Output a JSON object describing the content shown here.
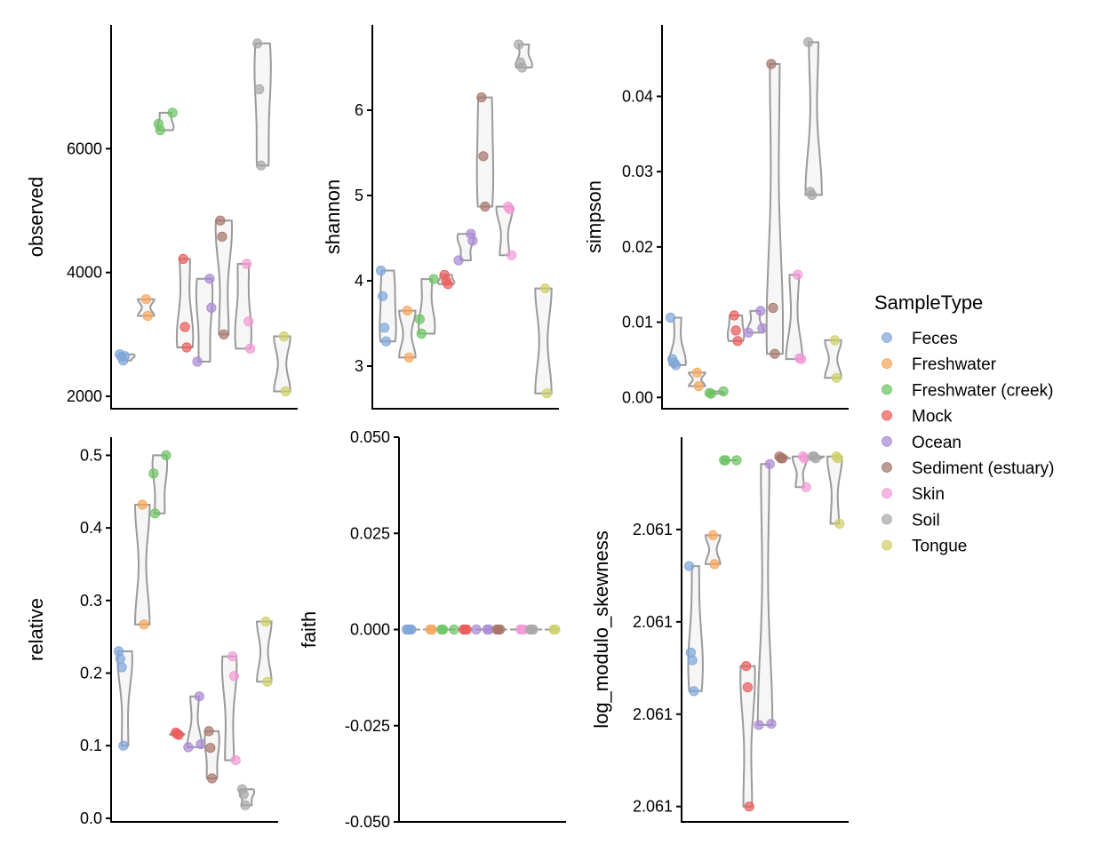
{
  "colors": {
    "Feces": "#7fa6d9",
    "Freshwater": "#f7a65b",
    "Freshwater (creek)": "#6cc463",
    "Mock": "#ec5b5b",
    "Ocean": "#a98bd6",
    "Sediment (estuary)": "#a6766a",
    "Skin": "#f39ad6",
    "Soil": "#a8a8a8",
    "Tongue": "#cfd06a"
  },
  "legend": {
    "title": "SampleType",
    "items": [
      "Feces",
      "Freshwater",
      "Freshwater (creek)",
      "Mock",
      "Ocean",
      "Sediment (estuary)",
      "Skin",
      "Soil",
      "Tongue"
    ]
  },
  "chart_data": [
    {
      "type": "violin",
      "ylabel": "observed",
      "ylim": [
        1800,
        8000
      ],
      "yticks": [
        2000,
        4000,
        6000
      ],
      "tick_labels": [
        "2000",
        "4000",
        "6000"
      ],
      "groups": {
        "Feces": [
          2680,
          2640,
          2580,
          2650
        ],
        "Freshwater": [
          3570,
          3300
        ],
        "Freshwater (creek)": [
          6580,
          6400,
          6300
        ],
        "Mock": [
          4220,
          3120,
          2790
        ],
        "Ocean": [
          3900,
          3430,
          2560
        ],
        "Sediment (estuary)": [
          4840,
          4580,
          3000
        ],
        "Skin": [
          4140,
          3210,
          2770
        ],
        "Soil": [
          7700,
          6960,
          5730
        ],
        "Tongue": [
          2970,
          2080
        ]
      }
    },
    {
      "type": "violin",
      "ylabel": "shannon",
      "ylim": [
        2.5,
        7.0
      ],
      "yticks": [
        3,
        4,
        5,
        6
      ],
      "tick_labels": [
        "3",
        "4",
        "5",
        "6"
      ],
      "groups": {
        "Feces": [
          4.12,
          3.82,
          3.45,
          3.29
        ],
        "Freshwater": [
          3.65,
          3.1
        ],
        "Freshwater (creek)": [
          4.02,
          3.55,
          3.38
        ],
        "Mock": [
          4.07,
          4.0,
          3.96
        ],
        "Ocean": [
          4.55,
          4.47,
          4.24
        ],
        "Sediment (estuary)": [
          6.15,
          5.46,
          4.87
        ],
        "Skin": [
          4.87,
          4.84,
          4.3
        ],
        "Soil": [
          6.77,
          6.56,
          6.5
        ],
        "Tongue": [
          3.91,
          2.68
        ]
      }
    },
    {
      "type": "violin",
      "ylabel": "simpson",
      "ylim": [
        -0.0015,
        0.0495
      ],
      "yticks": [
        0.0,
        0.01,
        0.02,
        0.03,
        0.04
      ],
      "tick_labels": [
        "0.00",
        "0.01",
        "0.02",
        "0.03",
        "0.04"
      ],
      "groups": {
        "Feces": [
          0.0106,
          0.0051,
          0.0046,
          0.0043
        ],
        "Freshwater": [
          0.0033,
          0.0015
        ],
        "Freshwater (creek)": [
          0.0008,
          0.0006,
          0.0005
        ],
        "Mock": [
          0.0109,
          0.0089,
          0.0075
        ],
        "Ocean": [
          0.0115,
          0.0092,
          0.0086
        ],
        "Sediment (estuary)": [
          0.0443,
          0.0119,
          0.0058
        ],
        "Skin": [
          0.0163,
          0.0052,
          0.0051
        ],
        "Soil": [
          0.0472,
          0.0273,
          0.0269
        ],
        "Tongue": [
          0.0076,
          0.0026
        ]
      }
    },
    {
      "type": "violin",
      "ylabel": "relative",
      "ylim": [
        -0.005,
        0.525
      ],
      "yticks": [
        0.0,
        0.1,
        0.2,
        0.3,
        0.4,
        0.5
      ],
      "tick_labels": [
        "0.0",
        "0.1",
        "0.2",
        "0.3",
        "0.4",
        "0.5"
      ],
      "groups": {
        "Feces": [
          0.23,
          0.22,
          0.208,
          0.1
        ],
        "Freshwater": [
          0.432,
          0.267
        ],
        "Freshwater (creek)": [
          0.5,
          0.475,
          0.42
        ],
        "Mock": [
          0.118,
          0.116,
          0.115
        ],
        "Ocean": [
          0.168,
          0.102,
          0.098
        ],
        "Sediment (estuary)": [
          0.12,
          0.097,
          0.055
        ],
        "Skin": [
          0.223,
          0.196,
          0.08
        ],
        "Soil": [
          0.04,
          0.033,
          0.018
        ],
        "Tongue": [
          0.271,
          0.188
        ]
      }
    },
    {
      "type": "violin",
      "ylabel": "faith",
      "ylim": [
        -0.05,
        0.05
      ],
      "yticks": [
        -0.05,
        -0.025,
        0.0,
        0.025,
        0.05
      ],
      "tick_labels": [
        "-0.050",
        "-0.025",
        "0.000",
        "0.025",
        "0.050"
      ],
      "groups": {
        "Feces": [
          0,
          0,
          0,
          0
        ],
        "Freshwater": [
          0,
          0
        ],
        "Freshwater (creek)": [
          0,
          0,
          0
        ],
        "Mock": [
          0,
          0,
          0
        ],
        "Ocean": [
          0,
          0,
          0
        ],
        "Sediment (estuary)": [
          0,
          0,
          0
        ],
        "Skin": [
          0,
          0,
          0
        ],
        "Soil": [
          0,
          0,
          0
        ],
        "Tongue": [
          0,
          0
        ]
      }
    },
    {
      "type": "violin",
      "ylabel": "log_modulo_skewness",
      "ylim": [
        0,
        100
      ],
      "yticks": [
        4,
        28,
        52,
        76
      ],
      "tick_labels": [
        "2.061",
        "2.061",
        "2.061",
        "2.061"
      ],
      "groups": {
        "Feces": [
          66.5,
          44,
          42,
          34
        ],
        "Freshwater": [
          74.5,
          67
        ],
        "Freshwater (creek)": [
          94,
          94,
          94
        ],
        "Mock": [
          40.5,
          35,
          4
        ],
        "Ocean": [
          93,
          25.5,
          25.2
        ],
        "Sediment (estuary)": [
          95,
          94.5,
          94.5
        ],
        "Skin": [
          95,
          94.5,
          87
        ],
        "Soil": [
          95,
          95,
          94.5
        ],
        "Tongue": [
          95,
          94.5,
          77.5
        ]
      }
    }
  ]
}
